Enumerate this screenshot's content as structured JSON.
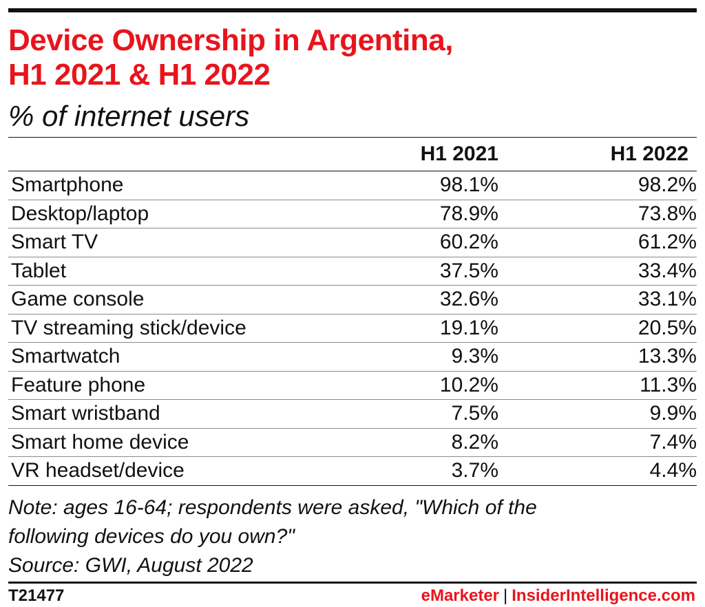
{
  "colors": {
    "accent": "#e8141c",
    "text": "#111111",
    "rule": "#111111"
  },
  "chart_data": {
    "type": "table",
    "title_lines": [
      "Device Ownership in Argentina,",
      "H1 2021 & H1 2022"
    ],
    "subtitle": "% of internet users",
    "columns": [
      "",
      "H1 2021",
      "H1 2022"
    ],
    "rows": [
      {
        "label": "Smartphone",
        "h1_2021": "98.1%",
        "h1_2022": "98.2%"
      },
      {
        "label": "Desktop/laptop",
        "h1_2021": "78.9%",
        "h1_2022": "73.8%"
      },
      {
        "label": "Smart TV",
        "h1_2021": "60.2%",
        "h1_2022": "61.2%"
      },
      {
        "label": "Tablet",
        "h1_2021": "37.5%",
        "h1_2022": "33.4%"
      },
      {
        "label": "Game console",
        "h1_2021": "32.6%",
        "h1_2022": "33.1%"
      },
      {
        "label": "TV streaming stick/device",
        "h1_2021": "19.1%",
        "h1_2022": "20.5%"
      },
      {
        "label": "Smartwatch",
        "h1_2021": "9.3%",
        "h1_2022": "13.3%"
      },
      {
        "label": "Feature phone",
        "h1_2021": "10.2%",
        "h1_2022": "11.3%"
      },
      {
        "label": "Smart wristband",
        "h1_2021": "7.5%",
        "h1_2022": "9.9%"
      },
      {
        "label": "Smart home device",
        "h1_2021": "8.2%",
        "h1_2022": "7.4%"
      },
      {
        "label": "VR headset/device",
        "h1_2021": "3.7%",
        "h1_2022": "4.4%"
      }
    ],
    "note_lines": [
      "Note: ages 16-64; respondents were asked, \"Which of the",
      "following devices do you own?\"",
      "Source: GWI, August 2022"
    ]
  },
  "footer": {
    "chart_id": "T21477",
    "brand_emarketer": "eMarketer",
    "brand_separator": "|",
    "brand_insider": "InsiderIntelligence.com"
  }
}
